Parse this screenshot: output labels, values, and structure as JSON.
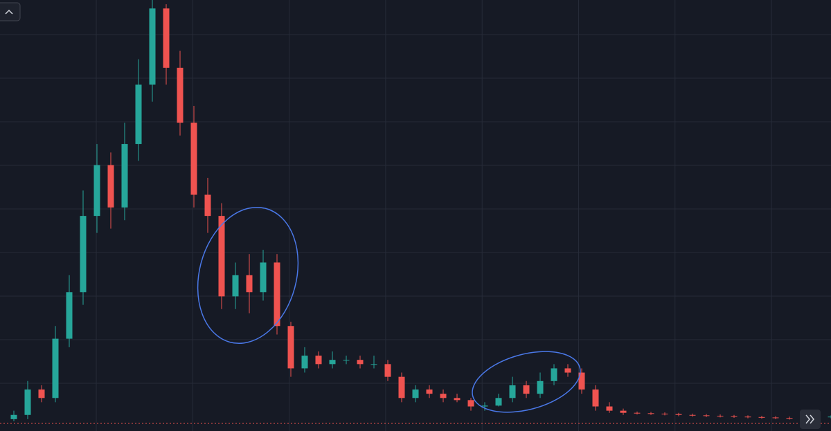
{
  "chart_data": {
    "type": "candlestick",
    "open": [
      1,
      2,
      8,
      6,
      20,
      31,
      49,
      61,
      51,
      66,
      80,
      98,
      84,
      71,
      54,
      49,
      30,
      35,
      31,
      38,
      23,
      13,
      16,
      14,
      15,
      15,
      14,
      14,
      11,
      6,
      8,
      7,
      6,
      5.5,
      4,
      4.2,
      6,
      9,
      7,
      10,
      13,
      12,
      8,
      4,
      3,
      2.5,
      2.4,
      2.3,
      2.2,
      2,
      1.9,
      1.8,
      1.7,
      1.6,
      1.5,
      1.4,
      1.3,
      1.2,
      1.3,
      1.5
    ],
    "high": [
      3,
      10,
      9,
      23,
      35,
      55,
      66,
      64,
      71,
      86,
      100,
      99,
      88,
      75,
      58,
      52,
      38,
      40,
      41,
      40,
      24,
      18,
      17,
      17,
      16,
      16,
      16,
      15,
      12,
      9,
      9,
      8,
      7,
      6,
      5,
      7,
      11,
      10,
      12,
      14,
      14,
      13,
      9,
      5,
      3.5,
      2.8,
      2.7,
      2.6,
      2.5,
      2.3,
      2.2,
      2.1,
      2,
      1.9,
      1.8,
      1.7,
      1.6,
      1.6,
      1.8,
      1.9
    ],
    "low": [
      0.5,
      1,
      5,
      5,
      18,
      28,
      45,
      46,
      48,
      62,
      76,
      80,
      68,
      51,
      45,
      27,
      27,
      26,
      29,
      21,
      11,
      12,
      13,
      13,
      14,
      13,
      13,
      10,
      5,
      5,
      6,
      5,
      5,
      3,
      3,
      4,
      5,
      6,
      6,
      9,
      11,
      7,
      3,
      2.5,
      2,
      2.1,
      2,
      1.9,
      1.7,
      1.6,
      1.5,
      1.4,
      1.3,
      1.2,
      1.1,
      1,
      0.9,
      0.9,
      1,
      1.2
    ],
    "close": [
      2,
      8,
      6,
      20,
      31,
      49,
      61,
      51,
      66,
      80,
      98,
      84,
      71,
      54,
      49,
      30,
      35,
      31,
      38,
      23,
      13,
      16,
      14,
      15,
      15,
      14,
      14,
      11,
      6,
      8,
      7,
      6,
      5.5,
      4,
      4.2,
      6,
      9,
      7,
      10,
      13,
      12,
      8,
      4,
      3,
      2.5,
      2.4,
      2.3,
      2.2,
      2,
      1.9,
      1.8,
      1.7,
      1.6,
      1.5,
      1.4,
      1.3,
      1.2,
      1.3,
      1.5,
      1.6
    ],
    "up_color": "#26a69a",
    "down_color": "#ef5350",
    "ylim": [
      0,
      100
    ],
    "grid": true
  }
}
